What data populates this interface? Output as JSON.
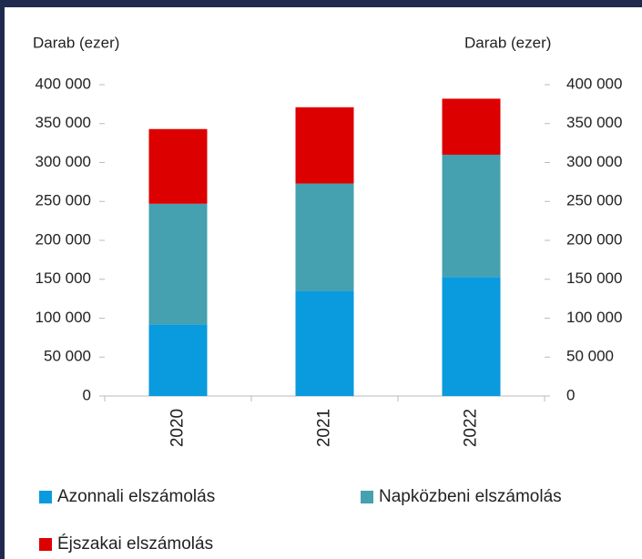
{
  "chart_data": {
    "type": "stacked_bar",
    "ylabel": "Darab (ezer)",
    "y2label": "Darab (ezer)",
    "categories": [
      "2020",
      "2021",
      "2022"
    ],
    "series": [
      {
        "name": "Azonnali elszámolás",
        "color": "#0a9ade",
        "values": [
          92000,
          135000,
          153000
        ]
      },
      {
        "name": "Napközbeni elszámolás",
        "color": "#45a0b0",
        "values": [
          155000,
          138000,
          157000
        ]
      },
      {
        "name": "Éjszakai elszámolás",
        "color": "#dc0000",
        "values": [
          96000,
          98000,
          72000
        ]
      }
    ],
    "ylim": [
      0,
      400000
    ],
    "yticks": [
      0,
      {
        "value": 50000,
        "label": "50 000"
      },
      {
        "value": 100000,
        "label": "100 000"
      },
      {
        "value": 150000,
        "label": "150 000"
      },
      {
        "value": 200000,
        "label": "200 000"
      },
      {
        "value": 250000,
        "label": "250 000"
      },
      {
        "value": 300000,
        "label": "300 000"
      },
      {
        "value": 350000,
        "label": "350 000"
      },
      {
        "value": 400000,
        "label": "400 000"
      }
    ],
    "y2lim": [
      0,
      400000
    ],
    "y2ticks": [
      0,
      {
        "value": 50000,
        "label": "50 000"
      },
      {
        "value": 100000,
        "label": "100 000"
      },
      {
        "value": 150000,
        "label": "150 000"
      },
      {
        "value": 200000,
        "label": "200 000"
      },
      {
        "value": 250000,
        "label": "250 000"
      },
      {
        "value": 300000,
        "label": "300 000"
      },
      {
        "value": 350000,
        "label": "350 000"
      },
      {
        "value": 400000,
        "label": "400 000"
      }
    ],
    "grid": false
  }
}
